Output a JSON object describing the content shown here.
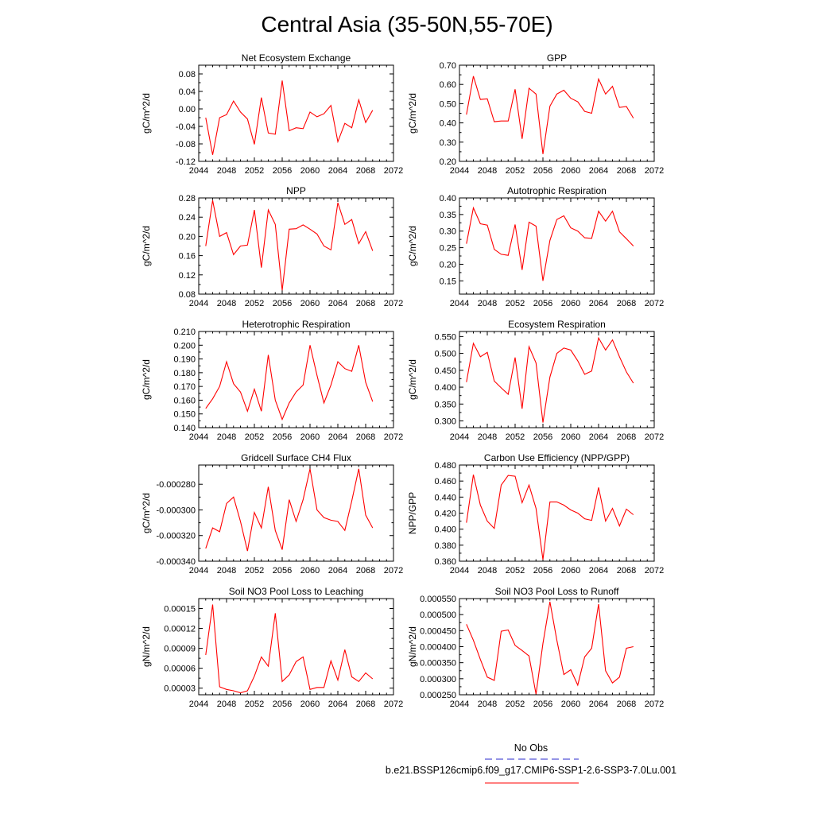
{
  "figure": {
    "title": "Central Asia (35-50N,55-70E)",
    "line_color": "#ff0000",
    "legend": {
      "entries": [
        {
          "label": "No Obs",
          "color": "#2a2acc",
          "dash": true
        },
        {
          "label": "b.e21.BSSP126cmip6.f09_g17.CMIP6-SSP1-2.6-SSP3-7.0Lu.001",
          "color": "#ff0000",
          "dash": false
        }
      ]
    }
  },
  "chart_data": [
    {
      "type": "line",
      "title": "Net Ecosystem Exchange",
      "ylabel": "gC/m^2/d",
      "xlim": [
        2044,
        2072
      ],
      "ylim": [
        -0.12,
        0.1
      ],
      "xticks": [
        "2044",
        "2048",
        "2052",
        "2056",
        "2060",
        "2064",
        "2068",
        "2072"
      ],
      "yticks": [
        -0.12,
        -0.08,
        -0.04,
        0.0,
        0.04,
        0.08
      ],
      "ytick_labels": [
        "-0.12",
        "-0.08",
        "-0.04",
        "0.00",
        "0.04",
        "0.08"
      ],
      "series": [
        {
          "x": [
            2045,
            2046,
            2047,
            2048,
            2049,
            2050,
            2051,
            2052,
            2053,
            2054,
            2055,
            2056,
            2057,
            2058,
            2059,
            2060,
            2061,
            2062,
            2063,
            2064,
            2065,
            2066,
            2067,
            2068,
            2069
          ],
          "values": [
            -0.02,
            -0.105,
            -0.02,
            -0.013,
            0.018,
            -0.007,
            -0.023,
            -0.081,
            0.026,
            -0.055,
            -0.058,
            0.065,
            -0.05,
            -0.043,
            -0.045,
            -0.007,
            -0.018,
            -0.011,
            0.008,
            -0.075,
            -0.033,
            -0.043,
            0.021,
            -0.031,
            -0.003
          ]
        }
      ]
    },
    {
      "type": "line",
      "title": "GPP",
      "ylabel": "gC/m^2/d",
      "xlim": [
        2044,
        2072
      ],
      "ylim": [
        0.2,
        0.7
      ],
      "xticks": [
        "2044",
        "2048",
        "2052",
        "2056",
        "2060",
        "2064",
        "2068",
        "2072"
      ],
      "yticks": [
        0.2,
        0.3,
        0.4,
        0.5,
        0.6,
        0.7
      ],
      "ytick_labels": [
        "0.20",
        "0.30",
        "0.40",
        "0.50",
        "0.60",
        "0.70"
      ],
      "series": [
        {
          "x": [
            2045,
            2046,
            2047,
            2048,
            2049,
            2050,
            2051,
            2052,
            2053,
            2054,
            2055,
            2056,
            2057,
            2058,
            2059,
            2060,
            2061,
            2062,
            2063,
            2064,
            2065,
            2066,
            2067,
            2068,
            2069
          ],
          "values": [
            0.443,
            0.643,
            0.522,
            0.525,
            0.406,
            0.41,
            0.41,
            0.575,
            0.317,
            0.58,
            0.55,
            0.238,
            0.487,
            0.55,
            0.57,
            0.528,
            0.51,
            0.46,
            0.45,
            0.628,
            0.55,
            0.59,
            0.48,
            0.485,
            0.425
          ]
        }
      ]
    },
    {
      "type": "line",
      "title": "NPP",
      "ylabel": "gC/m^2/d",
      "xlim": [
        2044,
        2072
      ],
      "ylim": [
        0.08,
        0.28
      ],
      "xticks": [
        "2044",
        "2048",
        "2052",
        "2056",
        "2060",
        "2064",
        "2068",
        "2072"
      ],
      "yticks": [
        0.08,
        0.12,
        0.16,
        0.2,
        0.24,
        0.28
      ],
      "ytick_labels": [
        "0.08",
        "0.12",
        "0.16",
        "0.20",
        "0.24",
        "0.28"
      ],
      "series": [
        {
          "x": [
            2045,
            2046,
            2047,
            2048,
            2049,
            2050,
            2051,
            2052,
            2053,
            2054,
            2055,
            2056,
            2057,
            2058,
            2059,
            2060,
            2061,
            2062,
            2063,
            2064,
            2065,
            2066,
            2067,
            2068,
            2069
          ],
          "values": [
            0.18,
            0.275,
            0.2,
            0.208,
            0.162,
            0.18,
            0.182,
            0.255,
            0.135,
            0.255,
            0.225,
            0.088,
            0.215,
            0.216,
            0.224,
            0.215,
            0.205,
            0.18,
            0.172,
            0.27,
            0.225,
            0.235,
            0.185,
            0.21,
            0.17
          ]
        }
      ]
    },
    {
      "type": "line",
      "title": "Autotrophic Respiration",
      "ylabel": "gC/m^2/d",
      "xlim": [
        2044,
        2072
      ],
      "ylim": [
        0.11,
        0.4
      ],
      "xticks": [
        "2044",
        "2048",
        "2052",
        "2056",
        "2060",
        "2064",
        "2068",
        "2072"
      ],
      "yticks": [
        0.15,
        0.2,
        0.25,
        0.3,
        0.35,
        0.4
      ],
      "ytick_labels": [
        "0.15",
        "0.20",
        "0.25",
        "0.30",
        "0.35",
        "0.40"
      ],
      "series": [
        {
          "x": [
            2045,
            2046,
            2047,
            2048,
            2049,
            2050,
            2051,
            2052,
            2053,
            2054,
            2055,
            2056,
            2057,
            2058,
            2059,
            2060,
            2061,
            2062,
            2063,
            2064,
            2065,
            2066,
            2067,
            2068,
            2069
          ],
          "values": [
            0.262,
            0.37,
            0.322,
            0.318,
            0.245,
            0.23,
            0.227,
            0.32,
            0.183,
            0.327,
            0.315,
            0.15,
            0.272,
            0.335,
            0.346,
            0.31,
            0.3,
            0.28,
            0.278,
            0.36,
            0.33,
            0.36,
            0.298,
            0.277,
            0.255
          ]
        }
      ]
    },
    {
      "type": "line",
      "title": "Heterotrophic Respiration",
      "ylabel": "gC/m^2/d",
      "xlim": [
        2044,
        2072
      ],
      "ylim": [
        0.14,
        0.21
      ],
      "xticks": [
        "2044",
        "2048",
        "2052",
        "2056",
        "2060",
        "2064",
        "2068",
        "2072"
      ],
      "yticks": [
        0.14,
        0.15,
        0.16,
        0.17,
        0.18,
        0.19,
        0.2,
        0.21
      ],
      "ytick_labels": [
        "0.140",
        "0.150",
        "0.160",
        "0.170",
        "0.180",
        "0.190",
        "0.200",
        "0.210"
      ],
      "series": [
        {
          "x": [
            2045,
            2046,
            2047,
            2048,
            2049,
            2050,
            2051,
            2052,
            2053,
            2054,
            2055,
            2056,
            2057,
            2058,
            2059,
            2060,
            2061,
            2062,
            2063,
            2064,
            2065,
            2066,
            2067,
            2068,
            2069
          ],
          "values": [
            0.154,
            0.161,
            0.17,
            0.188,
            0.172,
            0.166,
            0.152,
            0.168,
            0.152,
            0.193,
            0.16,
            0.146,
            0.158,
            0.166,
            0.171,
            0.2,
            0.178,
            0.158,
            0.171,
            0.188,
            0.183,
            0.181,
            0.2,
            0.173,
            0.159
          ]
        }
      ]
    },
    {
      "type": "line",
      "title": "Ecosystem Respiration",
      "ylabel": "gC/m^2/d",
      "xlim": [
        2044,
        2072
      ],
      "ylim": [
        0.28,
        0.565
      ],
      "xticks": [
        "2044",
        "2048",
        "2052",
        "2056",
        "2060",
        "2064",
        "2068",
        "2072"
      ],
      "yticks": [
        0.3,
        0.35,
        0.4,
        0.45,
        0.5,
        0.55
      ],
      "ytick_labels": [
        "0.300",
        "0.350",
        "0.400",
        "0.450",
        "0.500",
        "0.550"
      ],
      "series": [
        {
          "x": [
            2045,
            2046,
            2047,
            2048,
            2049,
            2050,
            2051,
            2052,
            2053,
            2054,
            2055,
            2056,
            2057,
            2058,
            2059,
            2060,
            2061,
            2062,
            2063,
            2064,
            2065,
            2066,
            2067,
            2068,
            2069
          ],
          "values": [
            0.415,
            0.53,
            0.49,
            0.503,
            0.418,
            0.398,
            0.379,
            0.488,
            0.336,
            0.52,
            0.472,
            0.295,
            0.43,
            0.5,
            0.516,
            0.51,
            0.478,
            0.438,
            0.448,
            0.546,
            0.51,
            0.54,
            0.49,
            0.445,
            0.412
          ]
        }
      ]
    },
    {
      "type": "line",
      "title": "Gridcell Surface CH4 Flux",
      "ylabel": "gC/m^2/d",
      "xlim": [
        2044,
        2072
      ],
      "ylim": [
        -0.00034,
        -0.000265
      ],
      "xticks": [
        "2044",
        "2048",
        "2052",
        "2056",
        "2060",
        "2064",
        "2068",
        "2072"
      ],
      "yticks": [
        -0.00034,
        -0.00032,
        -0.0003,
        -0.00028
      ],
      "ytick_labels": [
        "-0.000340",
        "-0.000320",
        "-0.000300",
        "-0.000280"
      ],
      "series": [
        {
          "x": [
            2045,
            2046,
            2047,
            2048,
            2049,
            2050,
            2051,
            2052,
            2053,
            2054,
            2055,
            2056,
            2057,
            2058,
            2059,
            2060,
            2061,
            2062,
            2063,
            2064,
            2065,
            2066,
            2067,
            2068,
            2069
          ],
          "values": [
            -0.00033,
            -0.000314,
            -0.000317,
            -0.000295,
            -0.00029,
            -0.000309,
            -0.000332,
            -0.000302,
            -0.000314,
            -0.000282,
            -0.000316,
            -0.000331,
            -0.000292,
            -0.000309,
            -0.000292,
            -0.000268,
            -0.0003,
            -0.000306,
            -0.000308,
            -0.000309,
            -0.000316,
            -0.000293,
            -0.000268,
            -0.000304,
            -0.000314
          ]
        }
      ]
    },
    {
      "type": "line",
      "title": "Carbon Use Efficiency (NPP/GPP)",
      "ylabel": "NPP/GPP",
      "xlim": [
        2044,
        2072
      ],
      "ylim": [
        0.36,
        0.48
      ],
      "xticks": [
        "2044",
        "2048",
        "2052",
        "2056",
        "2060",
        "2064",
        "2068",
        "2072"
      ],
      "yticks": [
        0.36,
        0.38,
        0.4,
        0.42,
        0.44,
        0.46,
        0.48
      ],
      "ytick_labels": [
        "0.360",
        "0.380",
        "0.400",
        "0.420",
        "0.440",
        "0.460",
        "0.480"
      ],
      "series": [
        {
          "x": [
            2045,
            2046,
            2047,
            2048,
            2049,
            2050,
            2051,
            2052,
            2053,
            2054,
            2055,
            2056,
            2057,
            2058,
            2059,
            2060,
            2061,
            2062,
            2063,
            2064,
            2065,
            2066,
            2067,
            2068,
            2069
          ],
          "values": [
            0.408,
            0.468,
            0.43,
            0.41,
            0.401,
            0.455,
            0.467,
            0.466,
            0.433,
            0.455,
            0.426,
            0.362,
            0.434,
            0.434,
            0.43,
            0.424,
            0.42,
            0.413,
            0.411,
            0.452,
            0.41,
            0.426,
            0.404,
            0.425,
            0.418
          ]
        }
      ]
    },
    {
      "type": "line",
      "title": "Soil NO3 Pool Loss to Leaching",
      "ylabel": "gN/m^2/d",
      "xlim": [
        2044,
        2072
      ],
      "ylim": [
        2e-05,
        0.000165
      ],
      "xticks": [
        "2044",
        "2048",
        "2052",
        "2056",
        "2060",
        "2064",
        "2068",
        "2072"
      ],
      "yticks": [
        3e-05,
        6e-05,
        9e-05,
        0.00012,
        0.00015
      ],
      "ytick_labels": [
        "0.00003",
        "0.00006",
        "0.00009",
        "0.00012",
        "0.00015"
      ],
      "series": [
        {
          "x": [
            2045,
            2046,
            2047,
            2048,
            2049,
            2050,
            2051,
            2052,
            2053,
            2054,
            2055,
            2056,
            2057,
            2058,
            2059,
            2060,
            2061,
            2062,
            2063,
            2064,
            2065,
            2066,
            2067,
            2068,
            2069
          ],
          "values": [
            8e-05,
            0.000156,
            3.2e-05,
            2.8e-05,
            2.6e-05,
            2.3e-05,
            2.6e-05,
            4.8e-05,
            7.7e-05,
            6.3e-05,
            0.000143,
            4e-05,
            5e-05,
            7e-05,
            7.7e-05,
            2.8e-05,
            3.1e-05,
            3.1e-05,
            7.1e-05,
            4.2e-05,
            8.8e-05,
            4.7e-05,
            4e-05,
            5.3e-05,
            4.4e-05
          ]
        }
      ]
    },
    {
      "type": "line",
      "title": "Soil NO3 Pool Loss to Runoff",
      "ylabel": "gN/m^2/d",
      "xlim": [
        2044,
        2072
      ],
      "ylim": [
        0.00025,
        0.00055
      ],
      "xticks": [
        "2044",
        "2048",
        "2052",
        "2056",
        "2060",
        "2064",
        "2068",
        "2072"
      ],
      "yticks": [
        0.00025,
        0.0003,
        0.00035,
        0.0004,
        0.00045,
        0.0005,
        0.00055
      ],
      "ytick_labels": [
        "0.000250",
        "0.000300",
        "0.000350",
        "0.000400",
        "0.000450",
        "0.000500",
        "0.000550"
      ],
      "series": [
        {
          "x": [
            2045,
            2046,
            2047,
            2048,
            2049,
            2050,
            2051,
            2052,
            2053,
            2054,
            2055,
            2056,
            2057,
            2058,
            2059,
            2060,
            2061,
            2062,
            2063,
            2064,
            2065,
            2066,
            2067,
            2068,
            2069
          ],
          "values": [
            0.00047,
            0.00042,
            0.00036,
            0.000305,
            0.000295,
            0.000448,
            0.000452,
            0.000404,
            0.000388,
            0.000371,
            0.000252,
            0.00041,
            0.00054,
            0.00042,
            0.000313,
            0.000328,
            0.00028,
            0.000368,
            0.000395,
            0.000533,
            0.000325,
            0.000287,
            0.000305,
            0.000395,
            0.0004
          ]
        }
      ]
    }
  ]
}
